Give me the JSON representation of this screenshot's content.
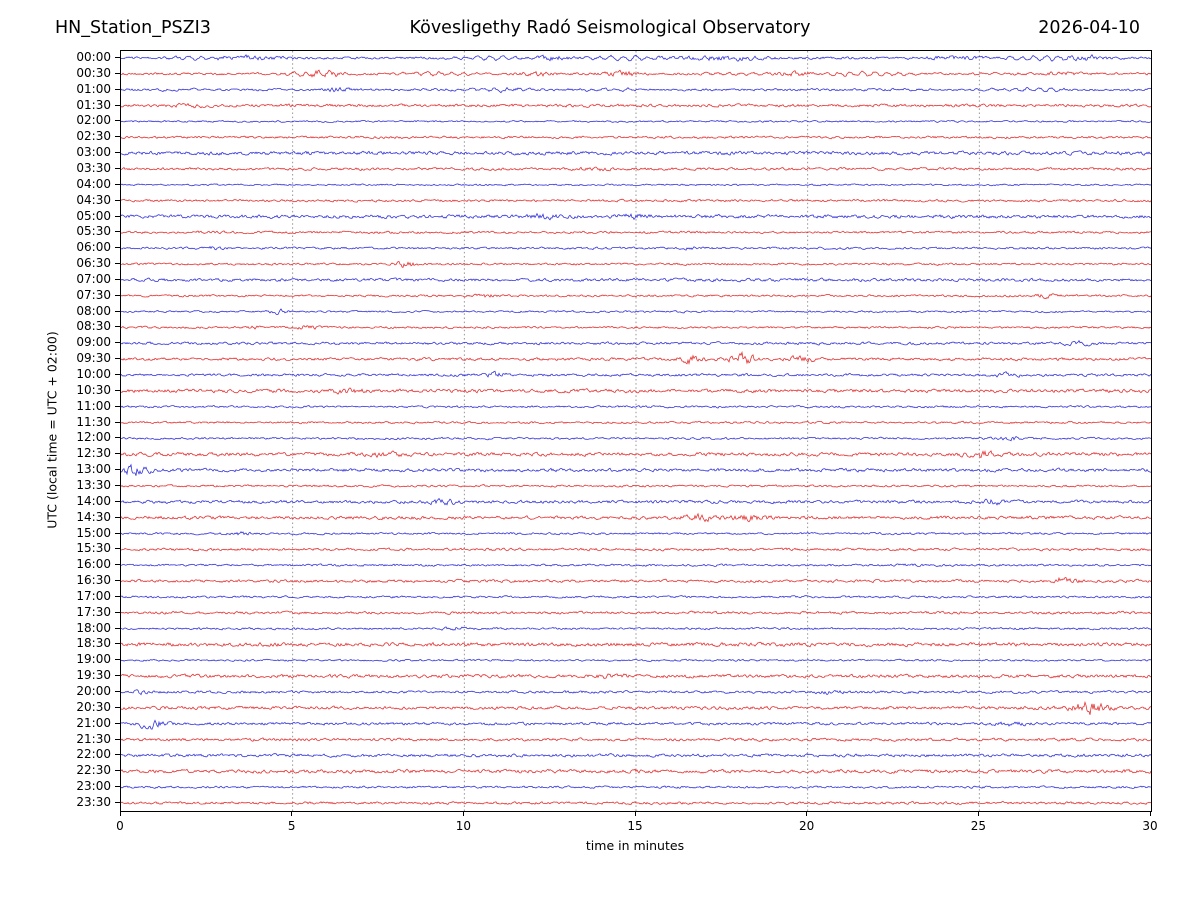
{
  "chart_data": {
    "type": "helicorder",
    "station": "HN_Station_PSZI3",
    "observatory": "Kövesligethy Radó Seismological Observatory",
    "date": "2026-04-10",
    "xlabel": "time in minutes",
    "ylabel": "UTC (local time = UTC + 02:00)",
    "xlim": [
      0,
      30
    ],
    "x_ticks": [
      0,
      5,
      10,
      15,
      20,
      25,
      30
    ],
    "minutes_per_row": 30,
    "grid": {
      "vertical_dotted_every_min": 5,
      "color": "#8a8a8a"
    },
    "trace_colors": {
      "blue": "#1717d6",
      "red": "#e01515"
    },
    "axis_color": "#000000",
    "rows": [
      {
        "label": "00:00",
        "color": "blue",
        "amp": 1.0,
        "lf": 1.4,
        "bursts": [
          [
            3.8,
            0.8,
            0.8
          ],
          [
            12.6,
            0.9,
            0.5
          ],
          [
            17.5,
            0.8,
            1.2
          ],
          [
            24.3,
            0.7,
            0.6
          ],
          [
            28.2,
            0.8,
            0.6
          ]
        ]
      },
      {
        "label": "00:30",
        "color": "red",
        "amp": 1.0,
        "lf": 1.2,
        "bursts": [
          [
            5.9,
            1.0,
            0.5
          ],
          [
            12.1,
            0.8,
            0.4
          ],
          [
            14.6,
            1.0,
            0.5
          ],
          [
            19.6,
            0.7,
            0.5
          ],
          [
            27.4,
            0.6,
            0.5
          ]
        ]
      },
      {
        "label": "01:00",
        "color": "blue",
        "amp": 1.0,
        "lf": 0.9,
        "bursts": [
          [
            6.3,
            0.8,
            0.3
          ],
          [
            11.2,
            0.5,
            0.5
          ]
        ]
      },
      {
        "label": "01:30",
        "color": "red",
        "amp": 1.2,
        "lf": 0,
        "bursts": [
          [
            2.1,
            0.4,
            0.5
          ]
        ]
      },
      {
        "label": "02:00",
        "color": "blue",
        "amp": 0.75,
        "lf": 0,
        "bursts": []
      },
      {
        "label": "02:30",
        "color": "red",
        "amp": 1.0,
        "lf": 0,
        "bursts": []
      },
      {
        "label": "03:00",
        "color": "blue",
        "amp": 1.5,
        "lf": 0,
        "bursts": []
      },
      {
        "label": "03:30",
        "color": "red",
        "amp": 1.1,
        "lf": 0,
        "bursts": [
          [
            13.8,
            0.5,
            0.4
          ]
        ]
      },
      {
        "label": "04:00",
        "color": "blue",
        "amp": 0.7,
        "lf": 0,
        "bursts": []
      },
      {
        "label": "04:30",
        "color": "red",
        "amp": 1.0,
        "lf": 0,
        "bursts": []
      },
      {
        "label": "05:00",
        "color": "blue",
        "amp": 1.5,
        "lf": 0,
        "bursts": [
          [
            12.3,
            0.6,
            0.4
          ],
          [
            14.9,
            0.5,
            0.4
          ]
        ]
      },
      {
        "label": "05:30",
        "color": "red",
        "amp": 1.0,
        "lf": 0,
        "bursts": []
      },
      {
        "label": "06:00",
        "color": "blue",
        "amp": 0.9,
        "lf": 0,
        "bursts": [
          [
            2.7,
            0.6,
            0.25
          ],
          [
            16.7,
            0.5,
            0.3
          ]
        ]
      },
      {
        "label": "06:30",
        "color": "red",
        "amp": 0.9,
        "lf": 0,
        "bursts": [
          [
            8.3,
            1.8,
            0.25
          ]
        ]
      },
      {
        "label": "07:00",
        "color": "blue",
        "amp": 1.3,
        "lf": 0,
        "bursts": []
      },
      {
        "label": "07:30",
        "color": "red",
        "amp": 0.9,
        "lf": 0,
        "bursts": [
          [
            10.6,
            0.8,
            0.3
          ],
          [
            26.9,
            0.7,
            0.35
          ]
        ]
      },
      {
        "label": "08:00",
        "color": "blue",
        "amp": 0.8,
        "lf": 0,
        "bursts": [
          [
            4.6,
            1.2,
            0.25
          ]
        ]
      },
      {
        "label": "08:30",
        "color": "red",
        "amp": 0.9,
        "lf": 0,
        "bursts": [
          [
            3.9,
            0.5,
            0.3
          ],
          [
            5.4,
            1.0,
            0.3
          ]
        ]
      },
      {
        "label": "09:00",
        "color": "blue",
        "amp": 1.1,
        "lf": 0,
        "bursts": [
          [
            27.9,
            0.7,
            0.4
          ]
        ]
      },
      {
        "label": "09:30",
        "color": "red",
        "amp": 1.2,
        "lf": 0,
        "bursts": [
          [
            16.6,
            1.5,
            0.35
          ],
          [
            18.1,
            1.9,
            0.4
          ],
          [
            19.8,
            0.9,
            0.4
          ]
        ]
      },
      {
        "label": "10:00",
        "color": "blue",
        "amp": 1.1,
        "lf": 0,
        "bursts": [
          [
            10.9,
            0.8,
            0.3
          ],
          [
            25.8,
            0.6,
            0.4
          ]
        ]
      },
      {
        "label": "10:30",
        "color": "red",
        "amp": 1.5,
        "lf": 0,
        "bursts": [
          [
            6.6,
            0.6,
            0.4
          ]
        ]
      },
      {
        "label": "11:00",
        "color": "blue",
        "amp": 0.9,
        "lf": 0,
        "bursts": []
      },
      {
        "label": "11:30",
        "color": "red",
        "amp": 0.9,
        "lf": 0,
        "bursts": []
      },
      {
        "label": "12:00",
        "color": "blue",
        "amp": 0.9,
        "lf": 0,
        "bursts": [
          [
            25.9,
            0.7,
            0.4
          ]
        ]
      },
      {
        "label": "12:30",
        "color": "red",
        "amp": 1.5,
        "lf": 0,
        "bursts": [
          [
            7.7,
            0.7,
            0.4
          ],
          [
            25.1,
            0.7,
            0.5
          ]
        ]
      },
      {
        "label": "13:00",
        "color": "blue",
        "amp": 1.4,
        "lf": 0,
        "bursts": [
          [
            0.4,
            1.5,
            0.4
          ]
        ]
      },
      {
        "label": "13:30",
        "color": "red",
        "amp": 0.9,
        "lf": 0,
        "bursts": []
      },
      {
        "label": "14:00",
        "color": "blue",
        "amp": 1.3,
        "lf": 0,
        "bursts": [
          [
            9.4,
            0.7,
            0.4
          ],
          [
            25.3,
            0.7,
            0.4
          ]
        ]
      },
      {
        "label": "14:30",
        "color": "red",
        "amp": 1.4,
        "lf": 0,
        "bursts": [
          [
            16.8,
            0.8,
            0.5
          ],
          [
            18.3,
            0.7,
            0.5
          ]
        ]
      },
      {
        "label": "15:00",
        "color": "blue",
        "amp": 0.9,
        "lf": 0,
        "bursts": [
          [
            3.5,
            0.6,
            0.3
          ]
        ]
      },
      {
        "label": "15:30",
        "color": "red",
        "amp": 1.1,
        "lf": 0,
        "bursts": []
      },
      {
        "label": "16:00",
        "color": "blue",
        "amp": 0.9,
        "lf": 0,
        "bursts": [
          [
            22.9,
            0.6,
            0.3
          ]
        ]
      },
      {
        "label": "16:30",
        "color": "red",
        "amp": 1.2,
        "lf": 0,
        "bursts": [
          [
            27.5,
            1.5,
            0.3
          ]
        ]
      },
      {
        "label": "17:00",
        "color": "blue",
        "amp": 0.9,
        "lf": 0,
        "bursts": []
      },
      {
        "label": "17:30",
        "color": "red",
        "amp": 1.1,
        "lf": 0,
        "bursts": []
      },
      {
        "label": "18:00",
        "color": "blue",
        "amp": 0.9,
        "lf": 0,
        "bursts": [
          [
            9.7,
            0.8,
            0.3
          ]
        ]
      },
      {
        "label": "18:30",
        "color": "red",
        "amp": 1.6,
        "lf": 0,
        "bursts": []
      },
      {
        "label": "19:00",
        "color": "blue",
        "amp": 0.8,
        "lf": 0,
        "bursts": []
      },
      {
        "label": "19:30",
        "color": "red",
        "amp": 1.4,
        "lf": 0,
        "bursts": [
          [
            14.3,
            0.6,
            0.4
          ]
        ]
      },
      {
        "label": "20:00",
        "color": "blue",
        "amp": 1.1,
        "lf": 0,
        "bursts": [
          [
            0.5,
            0.6,
            0.3
          ],
          [
            20.7,
            0.6,
            0.4
          ]
        ]
      },
      {
        "label": "20:30",
        "color": "red",
        "amp": 1.4,
        "lf": 0,
        "bursts": [
          [
            28.2,
            1.8,
            0.5
          ]
        ]
      },
      {
        "label": "21:00",
        "color": "blue",
        "amp": 1.2,
        "lf": 0,
        "bursts": [
          [
            0.9,
            1.8,
            0.4
          ],
          [
            25.9,
            0.6,
            0.4
          ]
        ]
      },
      {
        "label": "21:30",
        "color": "red",
        "amp": 1.2,
        "lf": 0,
        "bursts": []
      },
      {
        "label": "22:00",
        "color": "blue",
        "amp": 1.3,
        "lf": 0,
        "bursts": []
      },
      {
        "label": "22:30",
        "color": "red",
        "amp": 1.5,
        "lf": 0,
        "bursts": []
      },
      {
        "label": "23:00",
        "color": "blue",
        "amp": 0.9,
        "lf": 0,
        "bursts": []
      },
      {
        "label": "23:30",
        "color": "red",
        "amp": 1.1,
        "lf": 0,
        "bursts": []
      }
    ]
  }
}
